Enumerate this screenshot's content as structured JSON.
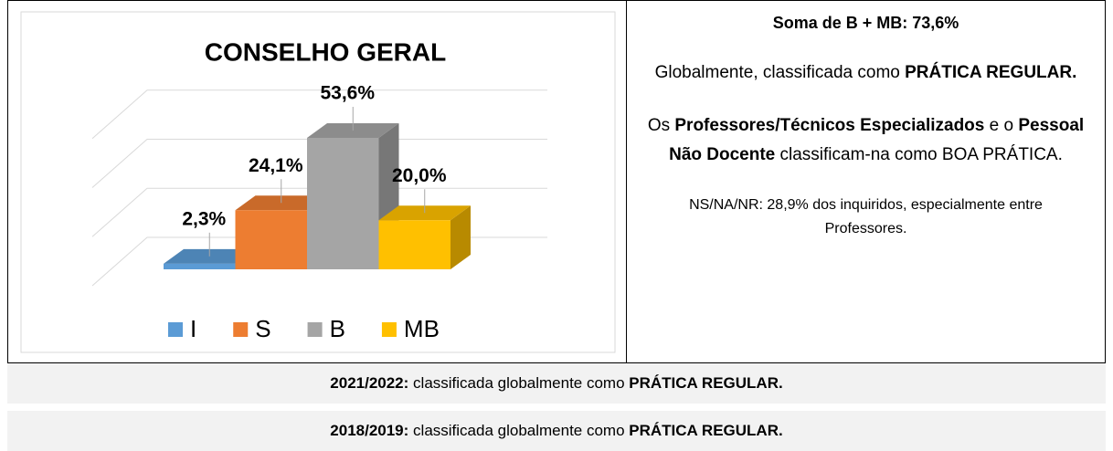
{
  "chart_data": {
    "type": "bar3d",
    "title": "CONSELHO GERAL",
    "categories": [
      "I",
      "S",
      "B",
      "MB"
    ],
    "values": [
      2.3,
      24.1,
      53.6,
      20.0
    ],
    "value_labels": [
      "2,3%",
      "24,1%",
      "53,6%",
      "20,0%"
    ],
    "colors": [
      "#5b9bd5",
      "#ed7d31",
      "#a5a5a5",
      "#ffc000"
    ],
    "ylim": [
      0,
      60
    ],
    "yticks": [
      0,
      20,
      40,
      60
    ],
    "grid": true,
    "legend": "bottom"
  },
  "right_panel": {
    "summary": "Soma de B + MB: 73,6%",
    "p1": [
      "Globalmente, classificada como ",
      "PRÁTICA REGULAR."
    ],
    "p2": [
      "Os ",
      "Professores/Técnicos Especializados",
      " e o ",
      "Pessoal Não Docente",
      " classificam-na como BOA PRÁTICA."
    ],
    "p3": "NS/NA/NR: 28,9% dos inquiridos, especialmente entre Professores."
  },
  "history": [
    [
      "2021/2022:",
      " classificada globalmente como ",
      "PRÁTICA REGULAR."
    ],
    [
      "2018/2019:",
      " classificada globalmente como ",
      "PRÁTICA REGULAR."
    ]
  ]
}
